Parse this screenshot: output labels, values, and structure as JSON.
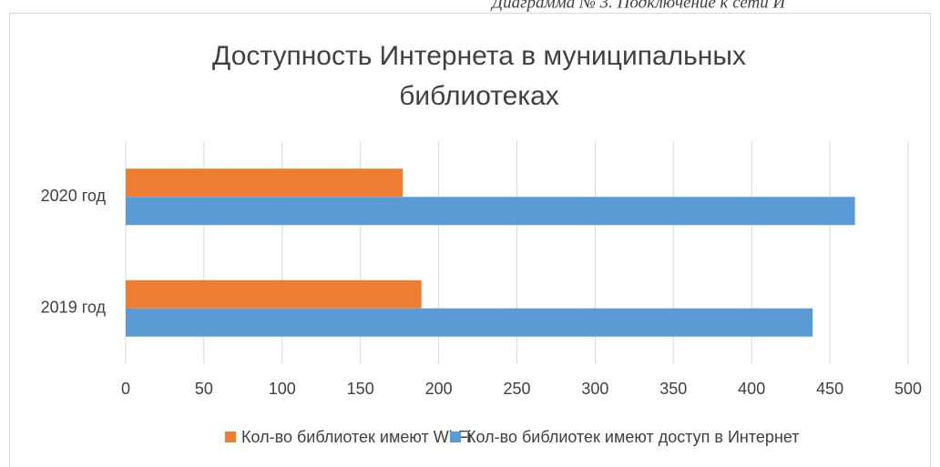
{
  "caption": "Диаграмма № 3. Подключение к сети И",
  "chart_data": {
    "type": "barh",
    "title": [
      "Доступность Интернета в муниципальных",
      "библиотеках"
    ],
    "categories": [
      "2019 год",
      "2020 год"
    ],
    "series": [
      {
        "name": "Кол-во библиотек имеют Wi-Fi",
        "color": "#ed7d31",
        "values": [
          189,
          177
        ]
      },
      {
        "name": "Кол-во библиотек имеют доступ в Интернет",
        "color": "#5b9bd5",
        "values": [
          439,
          466
        ]
      }
    ],
    "xlim": [
      0,
      500
    ],
    "xticks": [
      0,
      50,
      100,
      150,
      200,
      250,
      300,
      350,
      400,
      450,
      500
    ],
    "grid": true,
    "legend": "bottom"
  }
}
